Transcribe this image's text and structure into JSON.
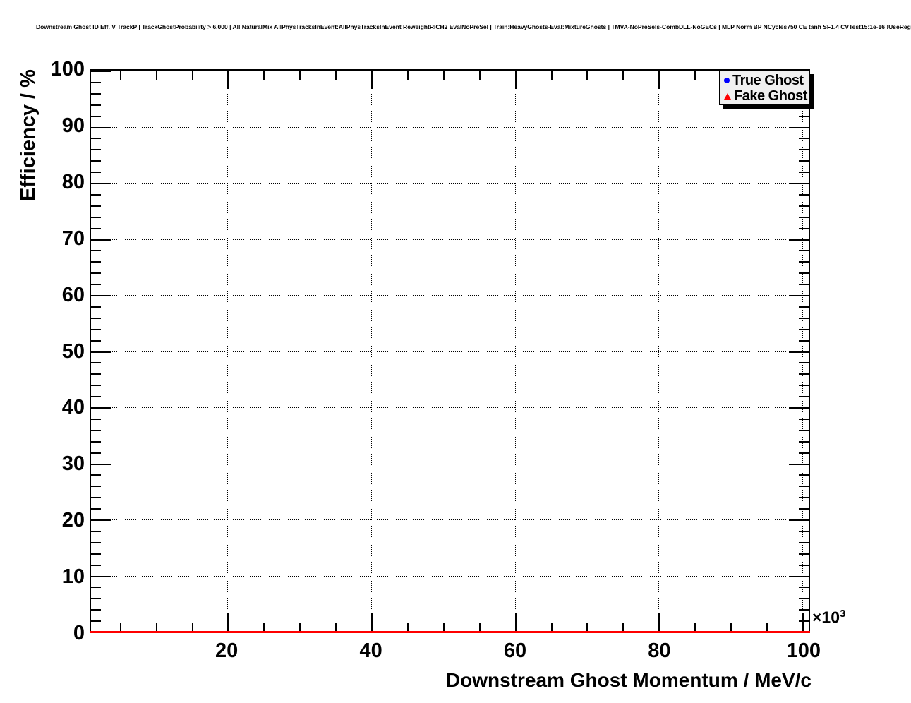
{
  "page": {
    "background": "#ffffff"
  },
  "chart_data": {
    "type": "line",
    "title": "Downstream Ghost ID Eff. V TrackP | TrackGhostProbability > 6.000 | All NaturalMix AllPhysTracksInEvent:AllPhysTracksInEvent ReweightRICH2 EvalNoPreSel | Train:HeavyGhosts-Eval:MixtureGhosts | TMVA-NoPreSels-CombDLL-NoGECs | MLP Norm BP NCycles750 CE tanh SF1.4 CVTest15:1e-16 !UseReg",
    "xlabel": "Downstream Ghost Momentum / MeV/c",
    "ylabel": "Efficiency / %",
    "x_unit_exponent": {
      "base": "×10",
      "exp": "3"
    },
    "xlim": [
      1,
      100.9
    ],
    "ylim": [
      0,
      100
    ],
    "x_major_ticks": [
      20,
      40,
      60,
      80,
      100
    ],
    "x_major_tick_labels": [
      "20",
      "40",
      "60",
      "80",
      "100"
    ],
    "x_minor_tick_step": 5,
    "y_major_ticks": [
      0,
      10,
      20,
      30,
      40,
      50,
      60,
      70,
      80,
      90,
      100
    ],
    "y_major_tick_labels": [
      "0",
      "10",
      "20",
      "30",
      "40",
      "50",
      "60",
      "70",
      "80",
      "90",
      "100"
    ],
    "y_minor_tick_step": 2,
    "grid": {
      "style": "dotted",
      "on_major_ticks": true
    },
    "axis_color": "#000000",
    "legend": {
      "position": "top-right",
      "fill": "#f0f0f0",
      "border_color": "#000000",
      "shadow": true,
      "entries": [
        {
          "label": "True Ghost",
          "marker": "circle",
          "color": "#0000ff"
        },
        {
          "label": "Fake Ghost",
          "marker": "triangle",
          "color": "#ff0000"
        }
      ]
    },
    "series": [
      {
        "name": "True Ghost",
        "marker": "circle",
        "color": "#0000ff",
        "values": []
      },
      {
        "name": "Fake Ghost",
        "marker": "triangle",
        "color": "#ff0000",
        "line": {
          "y_constant": 0,
          "x_from": 1,
          "x_to": 100.9
        }
      }
    ]
  }
}
